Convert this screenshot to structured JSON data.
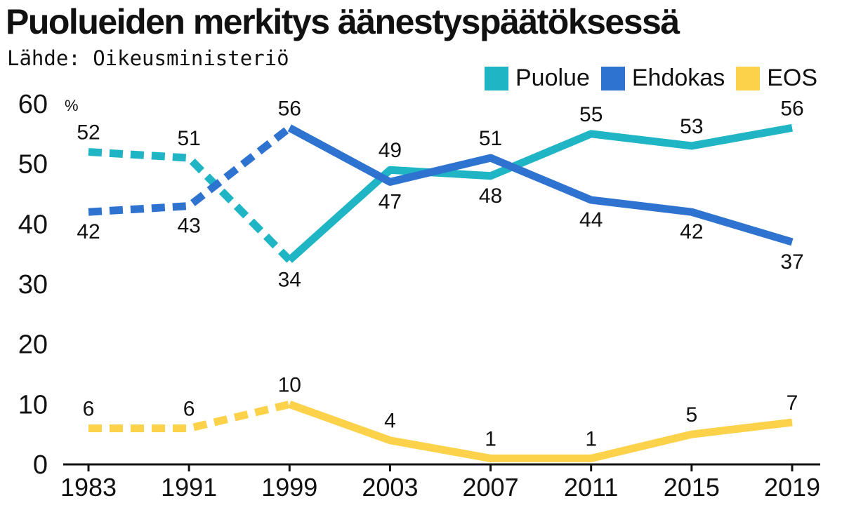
{
  "header": {
    "title": "Puolueiden merkitys äänestyspäätöksessä",
    "source": "Lähde: Oikeusministeriö"
  },
  "chart_data": {
    "type": "line",
    "title": "Puolueiden merkitys äänestyspäätöksessä",
    "source": "Lähde: Oikeusministeriö",
    "unit": "%",
    "categories": [
      "1983",
      "1991",
      "1999",
      "2003",
      "2007",
      "2011",
      "2015",
      "2019"
    ],
    "ylim": [
      0,
      60
    ],
    "yticks": [
      0,
      10,
      20,
      30,
      40,
      50,
      60
    ],
    "grid": false,
    "legend_position": "top-right",
    "dashed_until_index": 2,
    "series": [
      {
        "name": "Puolue",
        "color": "#1fb5c4",
        "values": [
          52,
          51,
          34,
          49,
          48,
          55,
          53,
          56
        ]
      },
      {
        "name": "Ehdokas",
        "color": "#2f73d1",
        "values": [
          42,
          43,
          56,
          47,
          51,
          44,
          42,
          37
        ]
      },
      {
        "name": "EOS",
        "color": "#fdd24b",
        "values": [
          6,
          6,
          10,
          4,
          1,
          1,
          5,
          7
        ]
      }
    ]
  }
}
